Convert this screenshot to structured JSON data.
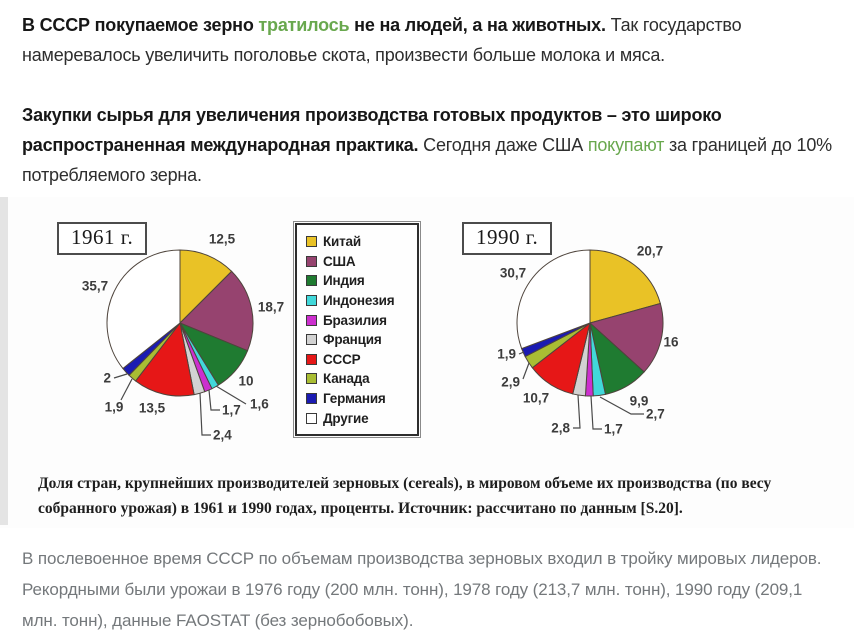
{
  "paragraphs": {
    "p1_bold_pre": "В СССР покупаемое зерно ",
    "p1_link": "тратилось",
    "p1_bold_post": " не на людей, а на животных.",
    "p1_normal": " Так государство намеревалось увеличить поголовье скота, произвести больше молока и мяса.",
    "p2_bold": "Закупки сырья для увеличения производства готовых продуктов – это широко распространенная международная практика.",
    "p2_normal_pre": " Сегодня даже США ",
    "p2_link": "покупают",
    "p2_normal_post": " за границей до 10% потребляемого зерна.",
    "p3": "В послевоенное время СССР по объемам производства зерновых входил в тройку мировых лидеров. Рекордными были урожаи в 1976 году (200 млн. тонн), 1978 году (213,7 млн. тонн), 1990 году (209,1 млн. тонн), данные FAOSTAT (без зернобобовых)."
  },
  "figure": {
    "caption": "Доля стран, крупнейших производителей зерновых (cereals), в мировом объеме их производства (по весу собранного урожая) в 1961 и 1990 годах, проценты. Источник: рассчитано по данным [S.20]."
  },
  "legend": {
    "items": [
      {
        "label": "Китай",
        "color": "#E9C226"
      },
      {
        "label": "США",
        "color": "#96436F"
      },
      {
        "label": "Индия",
        "color": "#1F7B31"
      },
      {
        "label": "Индонезия",
        "color": "#41D8DA"
      },
      {
        "label": "Бразилия",
        "color": "#CC2FCE"
      },
      {
        "label": "Франция",
        "color": "#D2D2D2"
      },
      {
        "label": "СССР",
        "color": "#E61717"
      },
      {
        "label": "Канада",
        "color": "#A9BD33"
      },
      {
        "label": "Германия",
        "color": "#1B1BB2"
      },
      {
        "label": "Другие",
        "color": "#FFFFFF"
      }
    ]
  },
  "chart_data": [
    {
      "type": "pie",
      "title": "1961 г.",
      "categories": [
        "Китай",
        "США",
        "Индия",
        "Индонезия",
        "Бразилия",
        "Франция",
        "СССР",
        "Канада",
        "Германия",
        "Другие"
      ],
      "values": [
        12.5,
        18.7,
        10,
        1.6,
        1.7,
        2.4,
        13.5,
        1.9,
        2,
        35.7
      ],
      "labels": [
        "12,5",
        "18,7",
        "10",
        "1,6",
        "1,7",
        "2,4",
        "13,5",
        "1,9",
        "2",
        "35,7"
      ],
      "colors": [
        "#E9C226",
        "#96436F",
        "#1F7B31",
        "#41D8DA",
        "#CC2FCE",
        "#D2D2D2",
        "#E61717",
        "#A9BD33",
        "#1B1BB2",
        "#FFFFFF"
      ],
      "start_angle": "top",
      "direction": "clockwise",
      "legend_position": "between-charts"
    },
    {
      "type": "pie",
      "title": "1990 г.",
      "categories": [
        "Китай",
        "США",
        "Индия",
        "Индонезия",
        "Бразилия",
        "Франция",
        "СССР",
        "Канада",
        "Германия",
        "Другие"
      ],
      "values": [
        20.7,
        16,
        9.9,
        2.7,
        1.7,
        2.8,
        10.7,
        2.9,
        1.9,
        30.7
      ],
      "labels": [
        "20,7",
        "16",
        "9,9",
        "2,7",
        "1,7",
        "2,8",
        "10,7",
        "2,9",
        "1,9",
        "30,7"
      ],
      "colors": [
        "#E9C226",
        "#96436F",
        "#1F7B31",
        "#41D8DA",
        "#CC2FCE",
        "#D2D2D2",
        "#E61717",
        "#A9BD33",
        "#1B1BB2",
        "#FFFFFF"
      ],
      "start_angle": "top",
      "direction": "clockwise",
      "legend_position": "between-charts"
    }
  ]
}
